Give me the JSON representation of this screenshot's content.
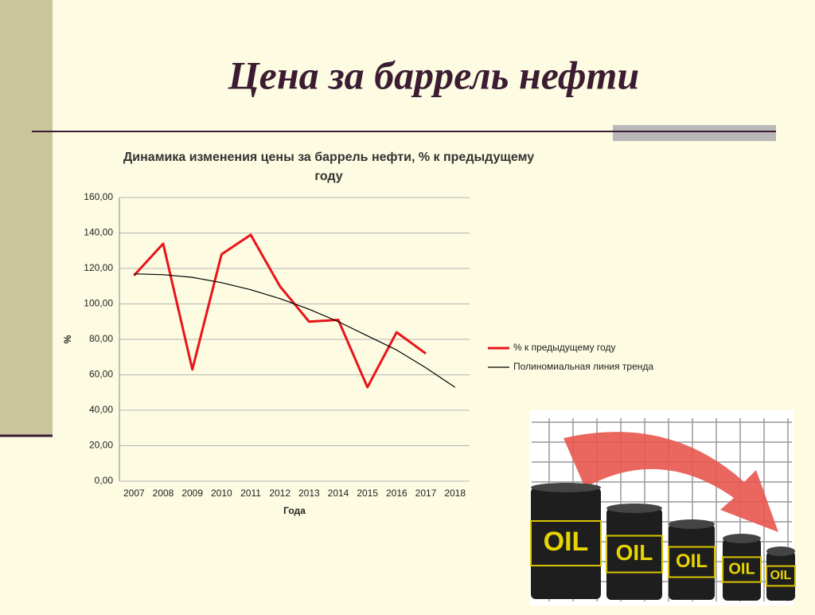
{
  "slide_title": "Цена за баррель нефти",
  "illustration_label": "OIL",
  "chart_data": {
    "type": "line",
    "title": "Динамика изменения цены за баррель нефти, % к предыдущему году",
    "x_label": "Года",
    "y_label": "%",
    "categories": [
      "2007",
      "2008",
      "2009",
      "2010",
      "2011",
      "2012",
      "2013",
      "2014",
      "2015",
      "2016",
      "2017",
      "2018"
    ],
    "series": [
      {
        "name": "% к предыдущему году",
        "color": "#e8141b",
        "values": [
          116,
          134,
          63,
          128,
          139,
          110,
          90,
          91,
          53,
          84,
          72,
          null
        ]
      },
      {
        "name": "Полиномиальная линия тренда",
        "color": "#000000",
        "values": [
          117,
          116.5,
          115,
          112,
          108,
          103,
          97,
          90,
          82,
          74,
          64,
          53
        ]
      }
    ],
    "ylim": [
      0,
      160
    ],
    "yticks": [
      {
        "value": 0,
        "label": "0,00"
      },
      {
        "value": 20,
        "label": "20,00"
      },
      {
        "value": 40,
        "label": "40,00"
      },
      {
        "value": 60,
        "label": "60,00"
      },
      {
        "value": 80,
        "label": "80,00"
      },
      {
        "value": 100,
        "label": "100,00"
      },
      {
        "value": 120,
        "label": "120,00"
      },
      {
        "value": 140,
        "label": "140,00"
      },
      {
        "value": 160,
        "label": "160,00"
      }
    ],
    "grid": true,
    "legend": "right"
  }
}
